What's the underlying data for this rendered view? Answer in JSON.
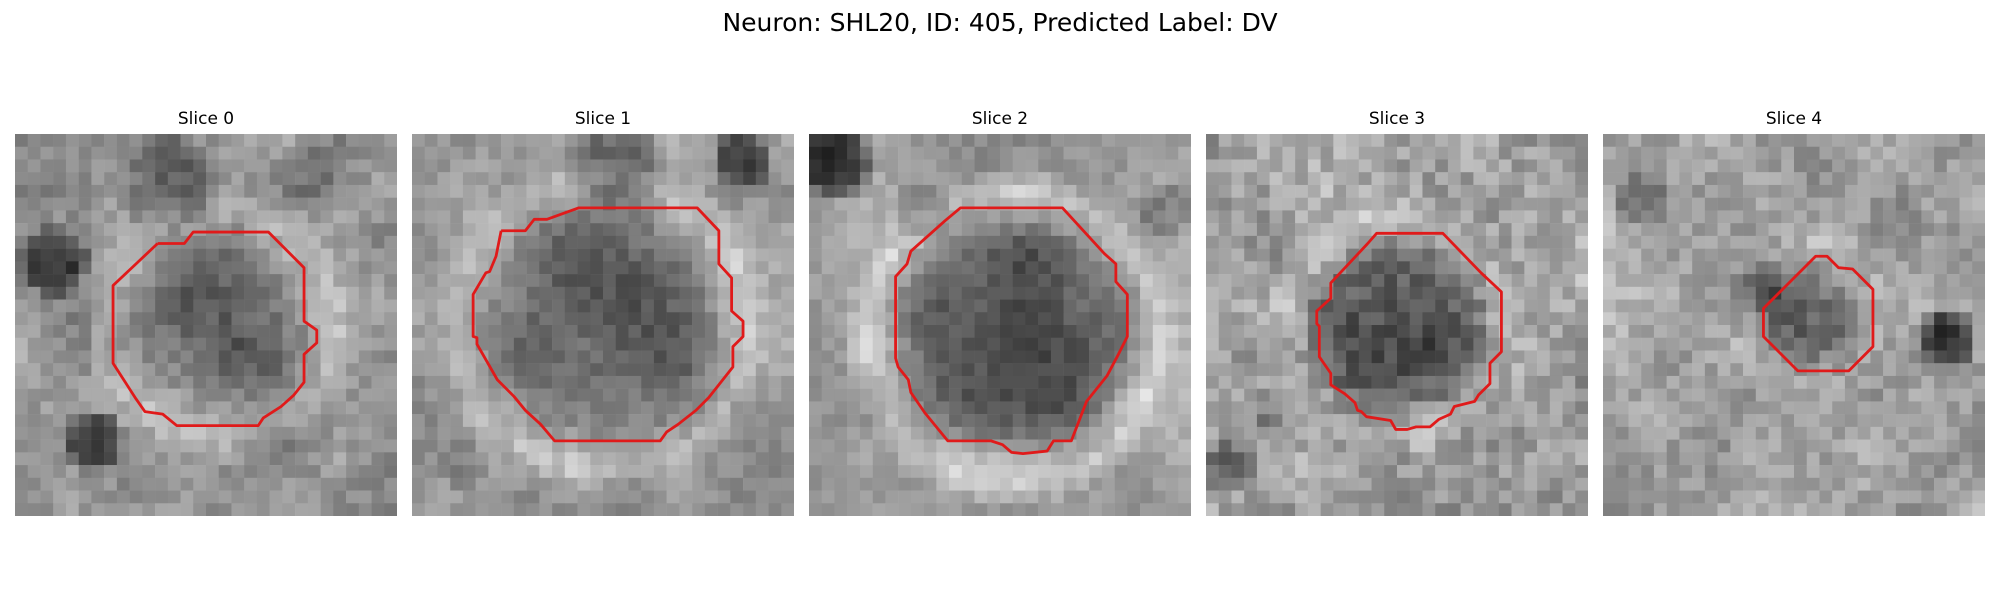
{
  "figure": {
    "title": "Neuron: SHL20, ID: 405, Predicted Label: DV"
  },
  "contour_color": "#e01a1a",
  "colormap": "grayscale",
  "slices": [
    {
      "title": "Slice 0"
    },
    {
      "title": "Slice 1"
    },
    {
      "title": "Slice 2"
    },
    {
      "title": "Slice 3"
    },
    {
      "title": "Slice 4"
    }
  ]
}
